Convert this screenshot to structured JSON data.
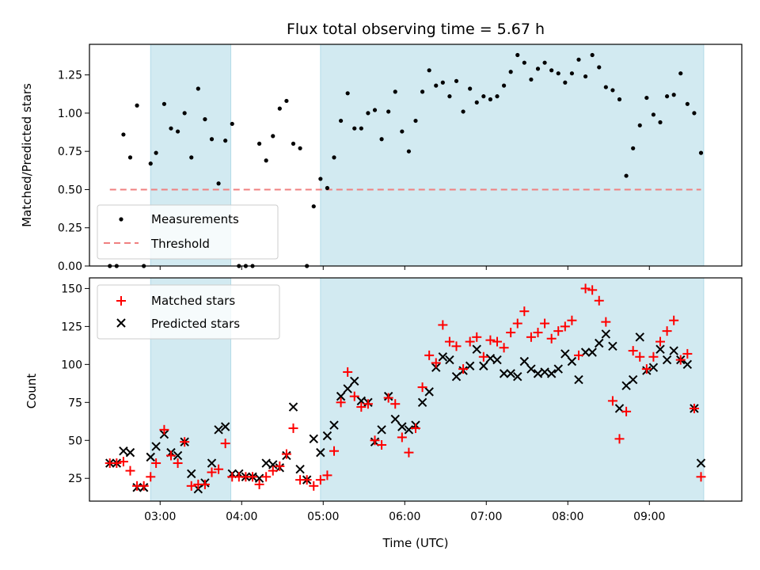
{
  "chart_data": [
    {
      "type": "scatter",
      "title": "Flux total observing time = 5.67 h",
      "xlabel": "",
      "ylabel": "Matched/Predicted stars",
      "xlim": [
        "02:08",
        "10:08"
      ],
      "ylim": [
        0,
        1.45
      ],
      "yticks": [
        0,
        0.25,
        0.5,
        0.75,
        1.0,
        1.25
      ],
      "ytick_labels": [
        "0.00",
        "0.25",
        "0.50",
        "0.75",
        "1.00",
        "1.25"
      ],
      "legend_location": "lower-left",
      "shaded_intervals": [
        [
          "02:53",
          "03:52"
        ],
        [
          "04:58",
          "09:40"
        ]
      ],
      "shade_color": "#add8e6",
      "series": [
        {
          "name": "Measurements",
          "marker": "dot",
          "color": "#000000",
          "x": [
            "02:23",
            "02:28",
            "02:33",
            "02:38",
            "02:43",
            "02:48",
            "02:53",
            "02:57",
            "03:03",
            "03:08",
            "03:13",
            "03:18",
            "03:23",
            "03:28",
            "03:33",
            "03:38",
            "03:43",
            "03:48",
            "03:53",
            "03:58",
            "04:03",
            "04:08",
            "04:13",
            "04:18",
            "04:23",
            "04:28",
            "04:33",
            "04:38",
            "04:43",
            "04:48",
            "04:53",
            "04:58",
            "05:03",
            "05:08",
            "05:13",
            "05:18",
            "05:23",
            "05:28",
            "05:33",
            "05:38",
            "05:43",
            "05:48",
            "05:53",
            "05:58",
            "06:03",
            "06:08",
            "06:13",
            "06:18",
            "06:23",
            "06:28",
            "06:33",
            "06:38",
            "06:43",
            "06:48",
            "06:53",
            "06:58",
            "07:03",
            "07:08",
            "07:13",
            "07:18",
            "07:23",
            "07:28",
            "07:33",
            "07:38",
            "07:43",
            "07:48",
            "07:53",
            "07:58",
            "08:03",
            "08:08",
            "08:13",
            "08:18",
            "08:23",
            "08:28",
            "08:33",
            "08:38",
            "08:43",
            "08:48",
            "08:53",
            "08:58",
            "09:03",
            "09:08",
            "09:13",
            "09:18",
            "09:23",
            "09:28",
            "09:33",
            "09:38"
          ],
          "y": [
            0.0,
            0.0,
            0.86,
            0.71,
            1.05,
            0.0,
            0.67,
            0.74,
            1.06,
            0.9,
            0.88,
            1.0,
            0.71,
            1.16,
            0.96,
            0.83,
            0.54,
            0.82,
            0.93,
            0.0,
            0.0,
            0.0,
            0.8,
            0.69,
            0.85,
            1.03,
            1.08,
            0.8,
            0.77,
            0.0,
            0.39,
            0.57,
            0.51,
            0.71,
            0.95,
            1.13,
            0.9,
            0.9,
            1.0,
            1.02,
            0.83,
            1.01,
            1.14,
            0.88,
            0.75,
            0.95,
            1.14,
            1.28,
            1.18,
            1.2,
            1.11,
            1.21,
            1.01,
            1.16,
            1.07,
            1.11,
            1.09,
            1.11,
            1.18,
            1.27,
            1.38,
            1.33,
            1.22,
            1.29,
            1.33,
            1.28,
            1.26,
            1.2,
            1.26,
            1.35,
            1.24,
            1.38,
            1.3,
            1.17,
            1.15,
            1.09,
            0.59,
            0.77,
            0.92,
            1.1,
            0.99,
            0.94,
            1.11,
            1.12,
            1.26,
            1.06,
            1.0,
            0.74
          ]
        },
        {
          "name": "Threshold",
          "marker": "dashed-line",
          "color": "#f08080",
          "x": [
            "02:23",
            "09:38"
          ],
          "y": [
            0.5,
            0.5
          ]
        }
      ]
    },
    {
      "type": "scatter",
      "title": "",
      "xlabel": "Time (UTC)",
      "ylabel": "Count",
      "xlim": [
        "02:08",
        "10:08"
      ],
      "xticks": [
        "03:00",
        "04:00",
        "05:00",
        "06:00",
        "07:00",
        "08:00",
        "09:00"
      ],
      "ylim": [
        10,
        157
      ],
      "yticks": [
        25,
        50,
        75,
        100,
        125,
        150
      ],
      "ytick_labels": [
        "25",
        "50",
        "75",
        "100",
        "125",
        "150"
      ],
      "legend_location": "upper-left",
      "shaded_intervals": [
        [
          "02:53",
          "03:52"
        ],
        [
          "04:58",
          "09:40"
        ]
      ],
      "shade_color": "#add8e6",
      "series": [
        {
          "name": "Matched stars",
          "marker": "plus",
          "color": "#ff0000",
          "x": [
            "02:23",
            "02:28",
            "02:33",
            "02:38",
            "02:43",
            "02:48",
            "02:53",
            "02:57",
            "03:03",
            "03:08",
            "03:13",
            "03:18",
            "03:23",
            "03:28",
            "03:33",
            "03:38",
            "03:43",
            "03:48",
            "03:53",
            "03:58",
            "04:03",
            "04:08",
            "04:13",
            "04:18",
            "04:23",
            "04:28",
            "04:33",
            "04:38",
            "04:43",
            "04:48",
            "04:53",
            "04:58",
            "05:03",
            "05:08",
            "05:13",
            "05:18",
            "05:23",
            "05:28",
            "05:33",
            "05:38",
            "05:43",
            "05:48",
            "05:53",
            "05:58",
            "06:03",
            "06:08",
            "06:13",
            "06:18",
            "06:23",
            "06:28",
            "06:33",
            "06:38",
            "06:43",
            "06:48",
            "06:53",
            "06:58",
            "07:03",
            "07:08",
            "07:13",
            "07:18",
            "07:23",
            "07:28",
            "07:33",
            "07:38",
            "07:43",
            "07:48",
            "07:53",
            "07:58",
            "08:03",
            "08:08",
            "08:13",
            "08:18",
            "08:23",
            "08:28",
            "08:33",
            "08:38",
            "08:43",
            "08:48",
            "08:53",
            "08:58",
            "09:03",
            "09:08",
            "09:13",
            "09:18",
            "09:23",
            "09:28",
            "09:33",
            "09:38"
          ],
          "y": [
            35,
            35,
            36,
            30,
            20,
            20,
            26,
            35,
            57,
            40,
            35,
            49,
            20,
            21,
            21,
            29,
            31,
            48,
            26,
            26,
            26,
            26,
            21,
            26,
            30,
            33,
            41,
            58,
            24,
            24,
            20,
            24,
            27,
            43,
            75,
            95,
            79,
            72,
            74,
            50,
            47,
            78,
            74,
            52,
            42,
            58,
            85,
            106,
            101,
            126,
            115,
            112,
            97,
            115,
            118,
            105,
            116,
            115,
            111,
            121,
            127,
            135,
            118,
            121,
            127,
            117,
            122,
            125,
            129,
            106,
            150,
            149,
            142,
            128,
            76,
            51,
            69,
            109,
            105,
            97,
            105,
            115,
            122,
            129,
            103,
            107,
            71,
            26
          ]
        },
        {
          "name": "Predicted stars",
          "marker": "x",
          "color": "#000000",
          "x": [
            "02:23",
            "02:28",
            "02:33",
            "02:38",
            "02:43",
            "02:48",
            "02:53",
            "02:57",
            "03:03",
            "03:08",
            "03:13",
            "03:18",
            "03:23",
            "03:28",
            "03:33",
            "03:38",
            "03:43",
            "03:48",
            "03:53",
            "03:58",
            "04:03",
            "04:08",
            "04:13",
            "04:18",
            "04:23",
            "04:28",
            "04:33",
            "04:38",
            "04:43",
            "04:48",
            "04:53",
            "04:58",
            "05:03",
            "05:08",
            "05:13",
            "05:18",
            "05:23",
            "05:28",
            "05:33",
            "05:38",
            "05:43",
            "05:48",
            "05:53",
            "05:58",
            "06:03",
            "06:08",
            "06:13",
            "06:18",
            "06:23",
            "06:28",
            "06:33",
            "06:38",
            "06:43",
            "06:48",
            "06:53",
            "06:58",
            "07:03",
            "07:08",
            "07:13",
            "07:18",
            "07:23",
            "07:28",
            "07:33",
            "07:38",
            "07:43",
            "07:48",
            "07:53",
            "07:58",
            "08:03",
            "08:08",
            "08:13",
            "08:18",
            "08:23",
            "08:28",
            "08:33",
            "08:38",
            "08:43",
            "08:48",
            "08:53",
            "08:58",
            "09:03",
            "09:08",
            "09:13",
            "09:18",
            "09:23",
            "09:28",
            "09:33",
            "09:38"
          ],
          "y": [
            35,
            35,
            43,
            42,
            19,
            19,
            39,
            46,
            54,
            42,
            40,
            49,
            28,
            18,
            22,
            35,
            57,
            59,
            28,
            28,
            26,
            26,
            25,
            35,
            34,
            32,
            40,
            72,
            31,
            24,
            51,
            42,
            53,
            60,
            79,
            84,
            89,
            76,
            75,
            49,
            57,
            79,
            64,
            59,
            57,
            60,
            75,
            82,
            98,
            105,
            103,
            92,
            96,
            99,
            110,
            99,
            104,
            103,
            94,
            94,
            92,
            102,
            97,
            94,
            95,
            94,
            97,
            107,
            102,
            90,
            108,
            108,
            114,
            120,
            112,
            71,
            86,
            90,
            118,
            96,
            98,
            110,
            103,
            109,
            103,
            100,
            71,
            35
          ]
        }
      ]
    }
  ]
}
